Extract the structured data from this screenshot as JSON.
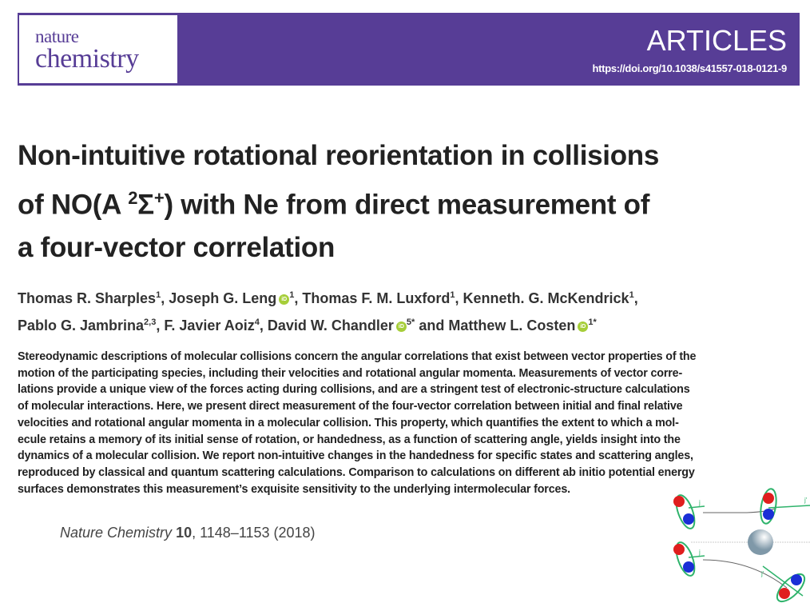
{
  "header": {
    "journal_line1": "nature",
    "journal_line2": "chemistry",
    "section": "ARTICLES",
    "doi": "https://doi.org/10.1038/s41557-018-0121-9",
    "color": "#573d96"
  },
  "title": {
    "line1": "Non-intuitive rotational reorientation in collisions",
    "line2_a": "of NO(A ",
    "line2_sup": "2",
    "line2_b": "Σ",
    "line2_sup2": "+",
    "line2_c": ") with Ne from direct measurement of",
    "line3": "a four-vector correlation"
  },
  "authors": [
    {
      "name": "Thomas R. Sharples",
      "aff": "1",
      "orcid": false,
      "sep": ", "
    },
    {
      "name": "Joseph G. Leng",
      "aff": "1",
      "orcid": true,
      "sep": ", "
    },
    {
      "name": "Thomas F. M. Luxford",
      "aff": "1",
      "orcid": false,
      "sep": ", "
    },
    {
      "name": "Kenneth. G. McKendrick",
      "aff": "1",
      "orcid": false,
      "sep": ","
    },
    {
      "name": "Pablo G. Jambrina",
      "aff": "2,3",
      "orcid": false,
      "sep": ", "
    },
    {
      "name": "F. Javier Aoiz",
      "aff": "4",
      "orcid": false,
      "sep": ", "
    },
    {
      "name": "David W. Chandler",
      "aff": "5*",
      "orcid": true,
      "sep": " and "
    },
    {
      "name": "Matthew L. Costen",
      "aff": "1*",
      "orcid": true,
      "sep": ""
    }
  ],
  "orcid_label": "iD",
  "abstract_lines": [
    "Stereodynamic descriptions of molecular collisions concern the angular correlations that exist between vector properties of the",
    "motion of the participating species, including their velocities and rotational angular momenta. Measurements of vector corre-",
    "lations provide a unique view of the forces acting during collisions, and are a stringent test of electronic-structure calculations",
    "of molecular interactions. Here, we present direct measurement of the four-vector correlation between initial and final relative",
    "velocities and rotational angular momenta in a molecular collision. This property, which quantifies the extent to which a mol-",
    "ecule retains a memory of its initial sense of rotation, or handedness, as a function of scattering angle, yields insight into the",
    "dynamics of a molecular collision. We report non-intuitive changes in the handedness for specific states and scattering angles,",
    "reproduced by classical and quantum scattering calculations. Comparison to calculations on different ab initio potential energy",
    "surfaces demonstrates this measurement’s exquisite sensitivity to the underlying intermolecular forces."
  ],
  "citation": {
    "journal": "Nature Chemistry",
    "volume": "10",
    "rest": ", 1148–1153 (2018)"
  },
  "figure": {
    "labels": [
      "j",
      "j'",
      "j",
      "j'"
    ]
  }
}
